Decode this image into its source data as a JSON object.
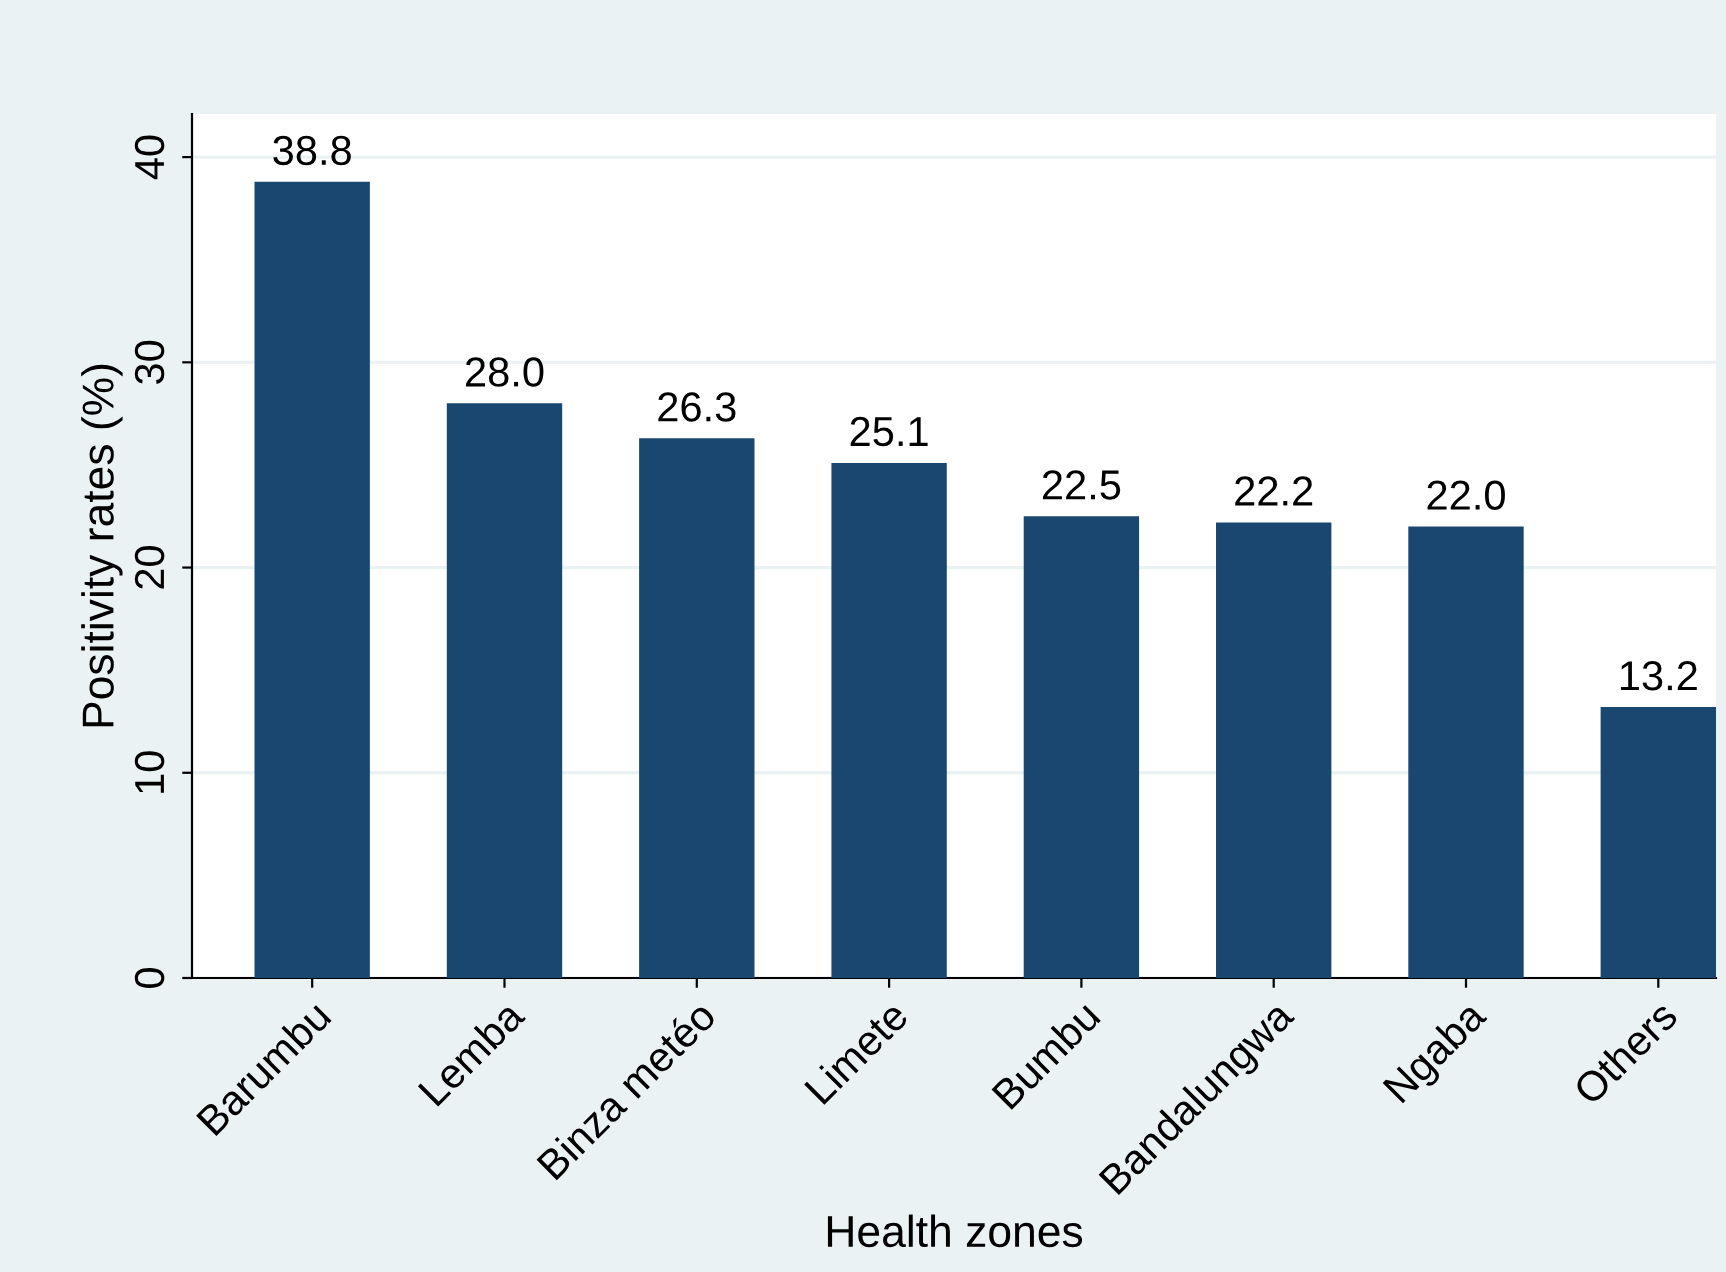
{
  "chart_data": {
    "type": "bar",
    "xlabel": "Health zones",
    "ylabel": "Positivity rates (%)",
    "categories": [
      "Barumbu",
      "Lemba",
      "Binza metéo",
      "Limete",
      "Bumbu",
      "Bandalungwa",
      "Ngaba",
      "Others"
    ],
    "values": [
      38.8,
      28.0,
      26.3,
      25.1,
      22.5,
      22.2,
      22.0,
      13.2
    ],
    "value_labels": [
      "38.8",
      "28.0",
      "26.3",
      "25.1",
      "22.5",
      "22.2",
      "22.0",
      "13.2"
    ],
    "color": "#1a476f",
    "ylim": [
      0,
      42.1
    ],
    "yticks": [
      0,
      10,
      20,
      30,
      40
    ],
    "grid": "y",
    "legend": false
  }
}
